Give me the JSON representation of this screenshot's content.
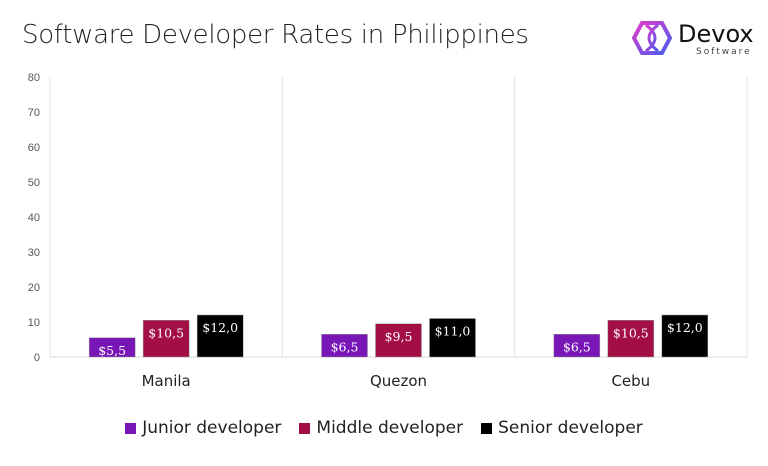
{
  "chart_data": {
    "type": "bar",
    "title": "Software Developer Rates in Philippines",
    "categories": [
      "Manila",
      "Quezon",
      "Cebu"
    ],
    "series": [
      {
        "name": "Junior developer",
        "color": "#7816b6",
        "values": [
          5.5,
          6.5,
          6.5
        ],
        "labels": [
          "$5,5",
          "$6,5",
          "$6,5"
        ]
      },
      {
        "name": "Middle developer",
        "color": "#a30f45",
        "values": [
          10.5,
          9.5,
          10.5
        ],
        "labels": [
          "$10,5",
          "$9,5",
          "$10,5"
        ]
      },
      {
        "name": "Senior developer",
        "color": "#000000",
        "values": [
          12.0,
          11.0,
          12.0
        ],
        "labels": [
          "$12,0",
          "$11,0",
          "$12,0"
        ]
      }
    ],
    "ylim": [
      0,
      80
    ],
    "yticks": [
      "0",
      "10",
      "20",
      "30",
      "40",
      "50",
      "60",
      "70",
      "80"
    ],
    "legend": "bottom",
    "grid": "vertical category separators"
  },
  "logo": {
    "brand": "Devox",
    "sub": "Software"
  }
}
